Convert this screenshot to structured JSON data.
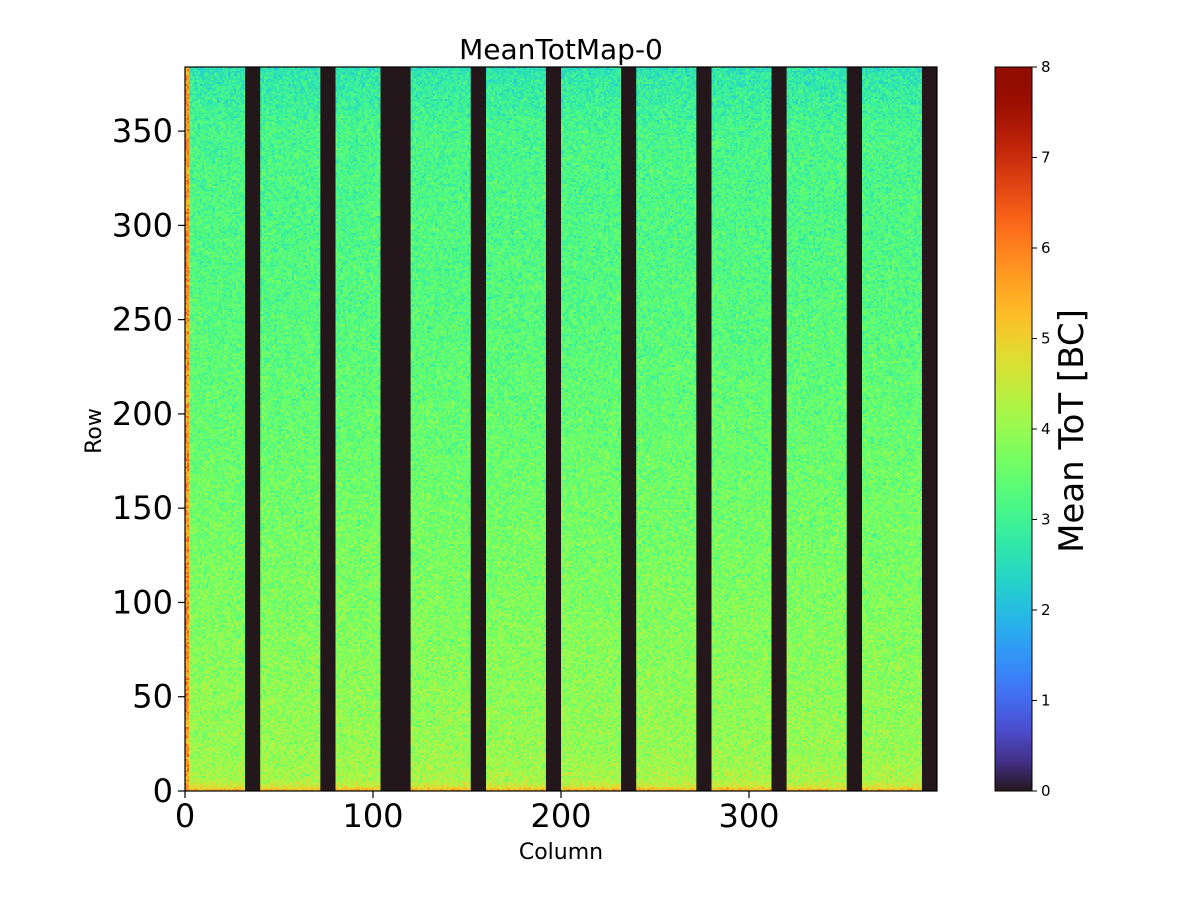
{
  "chart_data": {
    "type": "heatmap",
    "title": "MeanTotMap-0",
    "xlabel": "Column",
    "ylabel": "Row",
    "xlim": [
      0,
      400
    ],
    "ylim": [
      0,
      384
    ],
    "x_ticks": [
      0,
      100,
      200,
      300
    ],
    "y_ticks": [
      0,
      50,
      100,
      150,
      200,
      250,
      300,
      350
    ],
    "colorbar": {
      "label": "Mean ToT [BC]",
      "min": 0,
      "max": 8,
      "ticks": [
        0,
        1,
        2,
        3,
        4,
        5,
        6,
        7,
        8
      ],
      "colormap": "turbo"
    },
    "dead_column_bands": [
      [
        32,
        40
      ],
      [
        72,
        80
      ],
      [
        104,
        120
      ],
      [
        152,
        160
      ],
      [
        192,
        200
      ],
      [
        232,
        240
      ],
      [
        272,
        280
      ],
      [
        312,
        320
      ],
      [
        352,
        360
      ],
      [
        392,
        400
      ]
    ],
    "row_profile": {
      "rows": [
        0,
        2,
        5,
        20,
        50,
        100,
        150,
        200,
        250,
        300,
        350,
        380,
        384
      ],
      "mean_tot": [
        5.3,
        4.6,
        4.2,
        4.0,
        3.9,
        3.75,
        3.6,
        3.45,
        3.3,
        3.2,
        3.1,
        2.7,
        2.5
      ]
    },
    "dead_value": 0
  }
}
